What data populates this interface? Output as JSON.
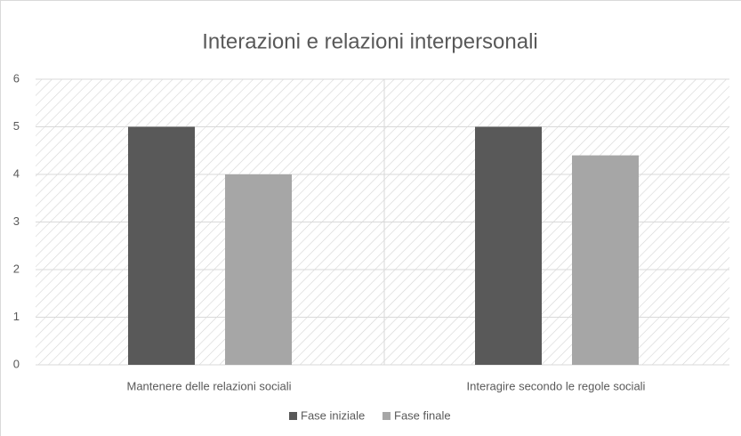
{
  "chart_data": {
    "type": "bar",
    "title": "Interazioni e relazioni interpersonali",
    "categories": [
      "Mantenere delle relazioni sociali",
      "Interagire secondo le regole sociali"
    ],
    "series": [
      {
        "name": "Fase iniziale",
        "color": "#595959",
        "values": [
          5,
          5
        ]
      },
      {
        "name": "Fase finale",
        "color": "#a6a6a6",
        "values": [
          4,
          4.4
        ]
      }
    ],
    "ylim": [
      0,
      6
    ],
    "yticks": [
      0,
      1,
      2,
      3,
      4,
      5,
      6
    ],
    "grid": true,
    "legend": "bottom"
  }
}
